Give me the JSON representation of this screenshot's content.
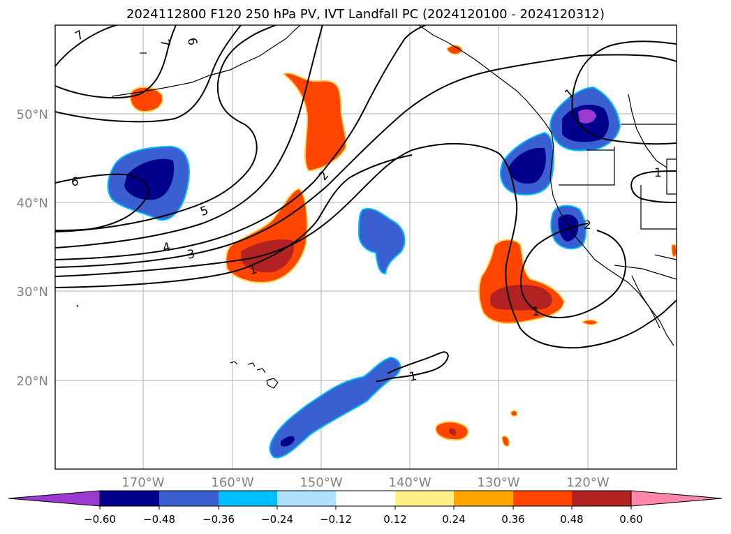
{
  "title": "2024112800 F120 250 hPa PV, IVT Landfall PC (2024120100 - 2024120312)",
  "lat_labels": [
    "50°N",
    "40°N",
    "30°N",
    "20°N"
  ],
  "lon_labels": [
    "170°W",
    "160°W",
    "150°W",
    "140°W",
    "130°W",
    "120°W"
  ],
  "contour_labels": [
    "7",
    "7",
    "6",
    "6",
    "5",
    "4",
    "3",
    "2",
    "1",
    "1",
    "1",
    "1",
    "2",
    "1"
  ],
  "colorbar": {
    "colors": [
      "#9a3ad0",
      "#00008b",
      "#3a5fd0",
      "#00bfff",
      "#b0e2ff",
      "#ffffff",
      "#fff08c",
      "#ffa500",
      "#ff4500",
      "#b22222",
      "#ff88aa"
    ],
    "ticks": [
      "−0.60",
      "−0.48",
      "−0.36",
      "−0.24",
      "−0.12",
      "0.12",
      "0.24",
      "0.36",
      "0.48",
      "0.60"
    ]
  }
}
